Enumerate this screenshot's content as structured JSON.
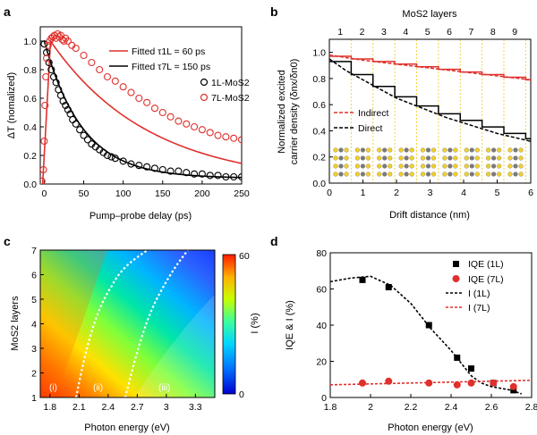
{
  "colors": {
    "red": "#e0302c",
    "black": "#000000",
    "dashed_white": "#ffffff",
    "vertical_band": "#f2d34a"
  },
  "chart_data": [
    {
      "panel": "a",
      "type": "scatter",
      "title": "",
      "xlabel": "Pump–probe delay (ps)",
      "ylabel": "ΔT (nomalized)",
      "xlim": [
        -5,
        250
      ],
      "ylim": [
        0,
        1.1
      ],
      "xticks": [
        0,
        50,
        100,
        150,
        200,
        250
      ],
      "yticks": [
        0,
        0.2,
        0.4,
        0.6,
        0.8,
        1.0
      ],
      "legend_labels": [
        "Fitted τ1L = 60 ps",
        "Fitted τ7L = 150 ps",
        "1L-MoS2",
        "7L-MoS2"
      ],
      "series": [
        {
          "name": "Fitted τ1L = 60 ps",
          "kind": "line",
          "color": "red",
          "tau": 60
        },
        {
          "name": "Fitted τ7L = 150 ps",
          "kind": "line",
          "color": "black",
          "tau": 150
        },
        {
          "name": "1L-MoS2",
          "kind": "points",
          "color": "black",
          "x": [
            0,
            3,
            6,
            9,
            12,
            15,
            18,
            21,
            24,
            27,
            30,
            33,
            36,
            40,
            45,
            50,
            55,
            60,
            65,
            70,
            75,
            80,
            85,
            90,
            100,
            110,
            120,
            130,
            140,
            150,
            160,
            170,
            180,
            190,
            200,
            210,
            220,
            230,
            240,
            250
          ],
          "y": [
            0.98,
            0.92,
            0.85,
            0.8,
            0.75,
            0.71,
            0.66,
            0.62,
            0.58,
            0.55,
            0.52,
            0.49,
            0.45,
            0.42,
            0.38,
            0.34,
            0.31,
            0.28,
            0.26,
            0.24,
            0.22,
            0.2,
            0.19,
            0.18,
            0.16,
            0.14,
            0.13,
            0.12,
            0.11,
            0.1,
            0.09,
            0.09,
            0.08,
            0.07,
            0.07,
            0.06,
            0.06,
            0.05,
            0.05,
            0.05
          ]
        },
        {
          "name": "7L-MoS2",
          "kind": "points",
          "color": "red",
          "x": [
            -3,
            -1,
            0,
            1,
            2,
            3,
            5,
            7,
            9,
            11,
            13,
            15,
            17,
            19,
            21,
            23,
            25,
            27,
            30,
            35,
            40,
            50,
            60,
            70,
            80,
            90,
            100,
            110,
            120,
            130,
            140,
            150,
            160,
            170,
            180,
            190,
            200,
            210,
            220,
            230,
            240,
            250
          ],
          "y": [
            0.02,
            0.1,
            0.3,
            0.55,
            0.75,
            0.88,
            0.97,
            1.0,
            1.02,
            1.03,
            1.04,
            1.02,
            1.05,
            1.03,
            1.04,
            1.01,
            1.0,
            1.02,
            1.0,
            0.97,
            0.95,
            0.9,
            0.85,
            0.8,
            0.75,
            0.72,
            0.68,
            0.64,
            0.6,
            0.57,
            0.53,
            0.5,
            0.47,
            0.44,
            0.42,
            0.4,
            0.38,
            0.36,
            0.34,
            0.33,
            0.32,
            0.31
          ]
        }
      ]
    },
    {
      "panel": "b",
      "type": "line",
      "xlabel": "Drift distance (nm)",
      "ylabel": "Normalized excited carrier density (δnx/δn0)",
      "top_axis_label": "MoS2 layers",
      "top_ticks": [
        "1",
        "2",
        "3",
        "4",
        "5",
        "6",
        "7",
        "8",
        "9"
      ],
      "xlim": [
        0,
        6
      ],
      "ylim": [
        0,
        1.1
      ],
      "xticks": [
        0,
        1,
        2,
        3,
        4,
        5,
        6
      ],
      "yticks": [
        0,
        0.2,
        0.4,
        0.6,
        0.8,
        1.0
      ],
      "legend_labels": [
        "Indirect",
        "Direct"
      ],
      "series": [
        {
          "name": "Indirect red dashed",
          "color": "red",
          "dashed": true,
          "x": [
            0,
            1,
            2,
            3,
            4,
            5,
            6
          ],
          "y": [
            0.98,
            0.94,
            0.91,
            0.88,
            0.85,
            0.82,
            0.79
          ]
        },
        {
          "name": "Indirect red step",
          "color": "red",
          "step": true,
          "x": [
            0,
            0.65,
            1.3,
            1.95,
            2.6,
            3.25,
            3.9,
            4.55,
            5.2,
            5.85,
            6
          ],
          "y": [
            0.97,
            0.95,
            0.93,
            0.91,
            0.89,
            0.87,
            0.85,
            0.83,
            0.81,
            0.79,
            0.78
          ]
        },
        {
          "name": "Direct black dashed",
          "color": "black",
          "dashed": true,
          "x": [
            0,
            0.5,
            1,
            1.5,
            2,
            2.5,
            3,
            3.5,
            4,
            4.5,
            5,
            5.5,
            6
          ],
          "y": [
            0.95,
            0.86,
            0.79,
            0.72,
            0.65,
            0.6,
            0.55,
            0.5,
            0.46,
            0.42,
            0.38,
            0.35,
            0.32
          ]
        },
        {
          "name": "Direct black step",
          "color": "black",
          "step": true,
          "x": [
            0,
            0.65,
            1.3,
            1.95,
            2.6,
            3.25,
            3.9,
            4.55,
            5.2,
            5.85,
            6
          ],
          "y": [
            0.93,
            0.83,
            0.74,
            0.66,
            0.59,
            0.53,
            0.48,
            0.43,
            0.38,
            0.34,
            0.31
          ]
        }
      ]
    },
    {
      "panel": "c",
      "type": "heatmap",
      "xlabel": "Photon energy (eV)",
      "ylabel": "MoS2 layers",
      "colorbar_label": "I (%)",
      "colorbar_ticks": [
        "0",
        "60"
      ],
      "xlim": [
        1.7,
        3.5
      ],
      "ylim": [
        1,
        7
      ],
      "xticks": [
        1.8,
        2.1,
        2.4,
        2.7,
        3.0,
        3.3
      ],
      "yticks": [
        1,
        2,
        3,
        4,
        5,
        6,
        7
      ],
      "region_labels": [
        "(i)",
        "(ii)",
        "(iii)"
      ]
    },
    {
      "panel": "d",
      "type": "scatter",
      "xlabel": "Photon energy (eV)",
      "ylabel": "IQE & I (%)",
      "xlim": [
        1.8,
        2.8
      ],
      "ylim": [
        0,
        80
      ],
      "xticks": [
        1.8,
        2.0,
        2.2,
        2.4,
        2.6,
        2.8
      ],
      "yticks": [
        0,
        20,
        40,
        60,
        80
      ],
      "legend_labels": [
        "IQE (1L)",
        "IQE (7L)",
        "I (1L)",
        "I (7L)"
      ],
      "series": [
        {
          "name": "IQE (1L)",
          "kind": "points",
          "marker": "square",
          "color": "black",
          "x": [
            1.96,
            2.09,
            2.29,
            2.43,
            2.5,
            2.61,
            2.71
          ],
          "y": [
            65,
            61,
            40,
            22,
            16,
            8,
            4
          ]
        },
        {
          "name": "IQE (7L)",
          "kind": "points",
          "marker": "circle",
          "color": "red",
          "x": [
            1.96,
            2.09,
            2.29,
            2.43,
            2.5,
            2.61,
            2.71
          ],
          "y": [
            8,
            9,
            8,
            7,
            8,
            8,
            6
          ]
        },
        {
          "name": "I (1L)",
          "kind": "line",
          "dashed": true,
          "color": "black",
          "x": [
            1.8,
            1.9,
            2.0,
            2.1,
            2.2,
            2.3,
            2.4,
            2.45,
            2.5,
            2.55,
            2.6,
            2.65,
            2.7,
            2.75
          ],
          "y": [
            64,
            66,
            67,
            62,
            52,
            38,
            26,
            19,
            12,
            8,
            6,
            5,
            4,
            2
          ]
        },
        {
          "name": "I (7L)",
          "kind": "line",
          "dashed": true,
          "color": "red",
          "x": [
            1.8,
            2.0,
            2.2,
            2.4,
            2.6,
            2.8
          ],
          "y": [
            7,
            7.5,
            8,
            8.5,
            9,
            9.5
          ]
        }
      ]
    }
  ]
}
